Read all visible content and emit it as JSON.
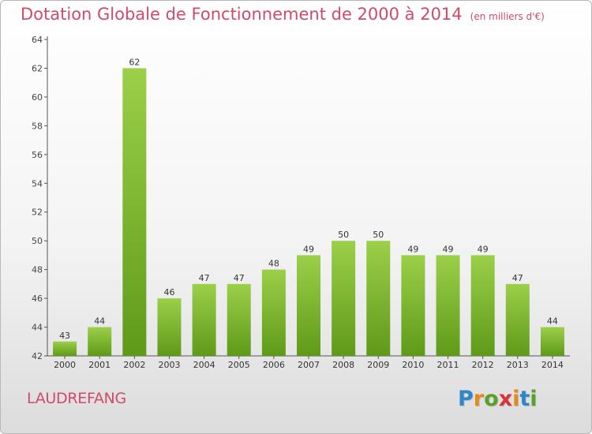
{
  "header": {
    "title": "Dotation Globale de Fonctionnement de 2000 à 2014",
    "subtitle": "(en milliers d'€)"
  },
  "footer": {
    "commune": "LAUDREFANG",
    "logo_letters": [
      "P",
      "r",
      "o",
      "x",
      "i",
      "t",
      "i"
    ]
  },
  "colors": {
    "title": "#d04a6a",
    "bar_top": "#9ccf4a",
    "bar_bottom": "#5e9a18",
    "logo": [
      "#2f86c8",
      "#e38a1a",
      "#5aa02c",
      "#d6333b",
      "#e38a1a",
      "#2f86c8",
      "#5aa02c"
    ]
  },
  "chart_data": {
    "type": "bar",
    "categories": [
      "2000",
      "2001",
      "2002",
      "2003",
      "2004",
      "2005",
      "2006",
      "2007",
      "2008",
      "2009",
      "2010",
      "2011",
      "2012",
      "2013",
      "2014"
    ],
    "values": [
      43,
      44,
      62,
      46,
      47,
      47,
      48,
      49,
      50,
      50,
      49,
      49,
      49,
      47,
      44
    ],
    "ylim": [
      42,
      64
    ],
    "yticks": [
      42,
      44,
      46,
      48,
      50,
      52,
      54,
      56,
      58,
      60,
      62,
      64
    ],
    "grid": false,
    "data_labels": true
  }
}
